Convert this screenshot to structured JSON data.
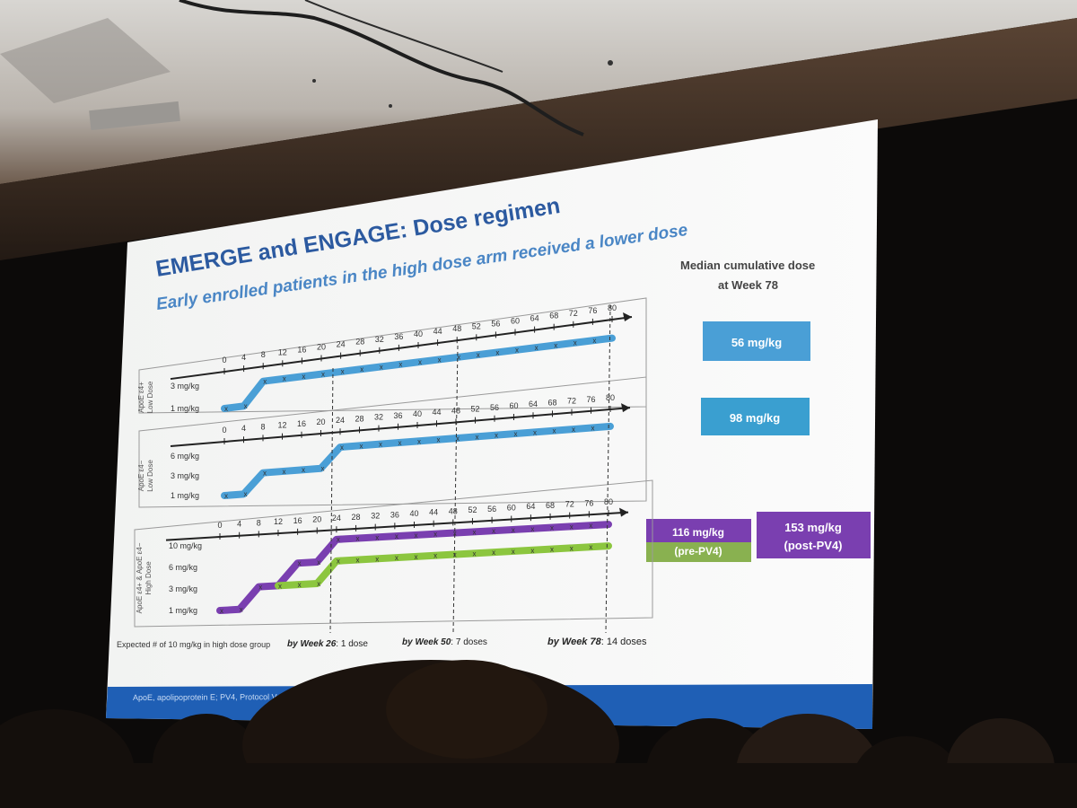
{
  "slide": {
    "title": "EMERGE and ENGAGE: Dose regimen",
    "subtitle": "Early enrolled patients in the high dose arm received a lower dose",
    "median_header_line1": "Median cumulative dose",
    "median_header_line2": "at Week 78",
    "footnote": "ApoE, apolipoprotein E; PV4, Protocol Version 4.",
    "weeks": [
      "0",
      "4",
      "8",
      "12",
      "16",
      "20",
      "24",
      "28",
      "32",
      "36",
      "40",
      "44",
      "48",
      "52",
      "56",
      "60",
      "64",
      "68",
      "72",
      "76",
      "80"
    ],
    "panels": [
      {
        "group_label_line1": "ApoE ε4+",
        "group_label_line2": "Low Dose",
        "dose_levels": [
          "3 mg/kg",
          "1 mg/kg"
        ],
        "median_dose": "56 mg/kg",
        "series": [
          {
            "color": "#4a9fd6",
            "steps": [
              [
                0,
                1
              ],
              [
                4,
                1
              ],
              [
                8,
                3
              ],
              [
                80,
                3
              ]
            ]
          }
        ]
      },
      {
        "group_label_line1": "ApoE ε4−",
        "group_label_line2": "Low Dose",
        "dose_levels": [
          "6 mg/kg",
          "3 mg/kg",
          "1 mg/kg"
        ],
        "median_dose": "98 mg/kg",
        "series": [
          {
            "color": "#4a9fd6",
            "steps": [
              [
                0,
                1
              ],
              [
                4,
                1
              ],
              [
                8,
                3
              ],
              [
                20,
                3
              ],
              [
                24,
                6
              ],
              [
                80,
                6
              ]
            ]
          }
        ]
      },
      {
        "group_label_line1": "ApoE ε4+ & ApoE ε4−",
        "group_label_line2": "High Dose",
        "dose_levels": [
          "10 mg/kg",
          "6 mg/kg",
          "3 mg/kg",
          "1 mg/kg"
        ],
        "median_pre": "116 mg/kg",
        "median_pre_sub": "(pre-PV4)",
        "median_post": "153 mg/kg",
        "median_post_sub": "(post-PV4)",
        "series": [
          {
            "color": "#7a3fb0",
            "steps": [
              [
                0,
                1
              ],
              [
                4,
                1
              ],
              [
                8,
                3
              ],
              [
                12,
                3
              ],
              [
                16,
                6
              ],
              [
                20,
                6
              ],
              [
                24,
                10
              ],
              [
                80,
                10
              ]
            ]
          },
          {
            "color": "#8cc63f",
            "steps": [
              [
                12,
                3
              ],
              [
                20,
                3
              ],
              [
                24,
                6
              ],
              [
                80,
                6
              ]
            ]
          }
        ]
      }
    ],
    "expected_label": "Expected # of 10 mg/kg in high dose group",
    "week26_label": "by Week 26",
    "week26_value": ": 1 dose",
    "week50_label": "by Week 50",
    "week50_value": ": 7 doses",
    "week78_label": "by Week 78",
    "week78_value": ": 14 doses",
    "colors": {
      "title": "#2c5aa0",
      "subtitle": "#4a86c5",
      "blue": "#4a9fd6",
      "purple": "#7a3fb0",
      "green": "#8cc63f",
      "footer_bar": "#1f5fb5"
    }
  }
}
